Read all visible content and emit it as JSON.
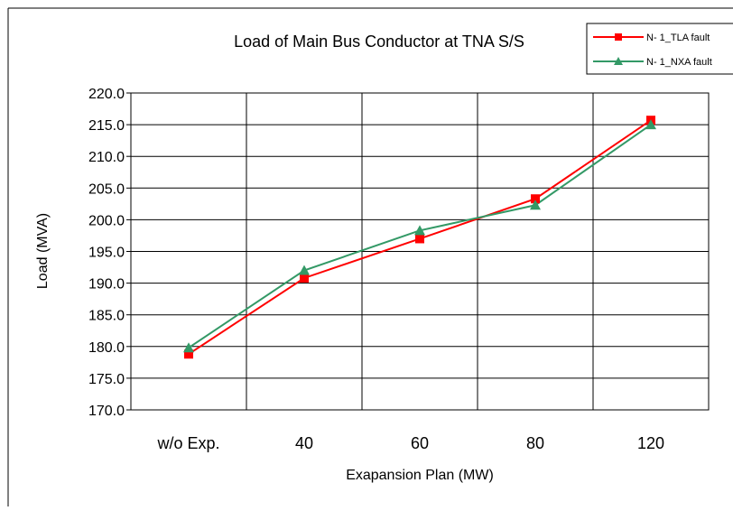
{
  "chart_data": {
    "type": "line",
    "title": "Load of Main Bus Conductor at TNA S/S",
    "xlabel": "Exapansion Plan (MW)",
    "ylabel": "Load (MVA)",
    "categories": [
      "w/o Exp.",
      "40",
      "60",
      "80",
      "120"
    ],
    "ylim": [
      170,
      220
    ],
    "ytick_step": 5,
    "ytick_labels": [
      "170.0",
      "175.0",
      "180.0",
      "185.0",
      "190.0",
      "195.0",
      "200.0",
      "205.0",
      "210.0",
      "215.0",
      "220.0"
    ],
    "grid": "on",
    "legend_position": "top-right",
    "series": [
      {
        "name": "N- 1_TLA fault",
        "values": [
          178.8,
          190.8,
          197.0,
          203.3,
          215.7
        ],
        "color": "#ff0000",
        "marker": "square"
      },
      {
        "name": "N- 1_NXA fault",
        "values": [
          179.8,
          192.0,
          198.3,
          202.3,
          215.0
        ],
        "color": "#339966",
        "marker": "triangle"
      }
    ]
  }
}
